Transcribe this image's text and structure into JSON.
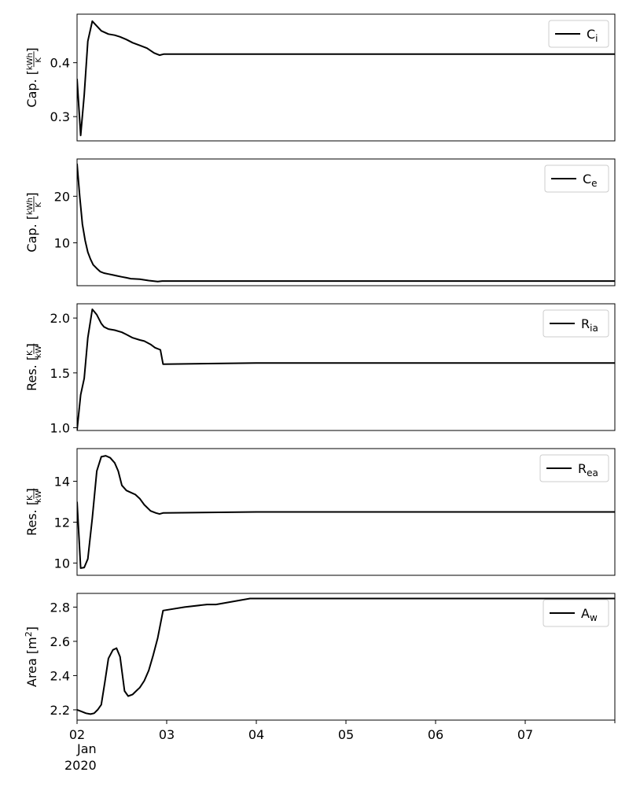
{
  "chart_data": [
    {
      "type": "line",
      "legend": {
        "label": "C",
        "sub": "i",
        "position": "top-right"
      },
      "ylabel": {
        "prefix": "Cap. [",
        "num": "kWh",
        "den": "K",
        "suffix": "]"
      },
      "xlim": [
        0,
        6
      ],
      "ylim": [
        0.255,
        0.49
      ],
      "yticks": [
        {
          "value": 0.3,
          "label": "0.3"
        },
        {
          "value": 0.4,
          "label": "0.4"
        }
      ],
      "x": [
        0,
        0.04,
        0.08,
        0.12,
        0.17,
        0.22,
        0.27,
        0.35,
        0.42,
        0.48,
        0.55,
        0.62,
        0.7,
        0.78,
        0.86,
        0.92,
        0.97,
        2.0,
        6.0
      ],
      "values": [
        0.37,
        0.265,
        0.34,
        0.44,
        0.477,
        0.468,
        0.459,
        0.453,
        0.451,
        0.448,
        0.443,
        0.437,
        0.432,
        0.427,
        0.418,
        0.414,
        0.416,
        0.416,
        0.416
      ]
    },
    {
      "type": "line",
      "legend": {
        "label": "C",
        "sub": "e",
        "position": "top-right"
      },
      "ylabel": {
        "prefix": "Cap. [",
        "num": "kWh",
        "den": "K",
        "suffix": "]"
      },
      "xlim": [
        0,
        6
      ],
      "ylim": [
        0.8,
        28
      ],
      "yticks": [
        {
          "value": 10,
          "label": "10"
        },
        {
          "value": 20,
          "label": "20"
        }
      ],
      "x": [
        0,
        0.03,
        0.06,
        0.09,
        0.12,
        0.15,
        0.18,
        0.22,
        0.26,
        0.3,
        0.35,
        0.4,
        0.45,
        0.5,
        0.55,
        0.6,
        0.7,
        0.8,
        0.85,
        0.9,
        0.95,
        2.0,
        6.0
      ],
      "values": [
        27,
        20,
        14,
        10.5,
        8,
        6.5,
        5.3,
        4.5,
        3.8,
        3.5,
        3.3,
        3.1,
        2.9,
        2.7,
        2.5,
        2.3,
        2.2,
        1.9,
        1.8,
        1.7,
        1.8,
        1.8,
        1.8
      ]
    },
    {
      "type": "line",
      "legend": {
        "label": "R",
        "sub": "ia",
        "position": "top-right"
      },
      "ylabel": {
        "prefix": "Res. [",
        "num": "K",
        "den": "kW",
        "suffix": "]"
      },
      "xlim": [
        0,
        6
      ],
      "ylim": [
        0.975,
        2.13
      ],
      "yticks": [
        {
          "value": 1.0,
          "label": "1.0"
        },
        {
          "value": 1.5,
          "label": "1.5"
        },
        {
          "value": 2.0,
          "label": "2.0"
        }
      ],
      "x": [
        0,
        0.04,
        0.08,
        0.12,
        0.17,
        0.22,
        0.27,
        0.3,
        0.35,
        0.42,
        0.5,
        0.55,
        0.62,
        0.7,
        0.75,
        0.82,
        0.87,
        0.93,
        0.96,
        2.0,
        6.0
      ],
      "values": [
        0.98,
        1.3,
        1.45,
        1.82,
        2.08,
        2.03,
        1.95,
        1.92,
        1.9,
        1.89,
        1.87,
        1.85,
        1.82,
        1.8,
        1.79,
        1.76,
        1.73,
        1.71,
        1.58,
        1.59,
        1.59
      ]
    },
    {
      "type": "line",
      "legend": {
        "label": "R",
        "sub": "ea",
        "position": "top-right"
      },
      "ylabel": {
        "prefix": "Res. [",
        "num": "K",
        "den": "kW",
        "suffix": "]"
      },
      "xlim": [
        0,
        6
      ],
      "ylim": [
        9.4,
        15.6
      ],
      "yticks": [
        {
          "value": 10,
          "label": "10"
        },
        {
          "value": 12,
          "label": "12"
        },
        {
          "value": 14,
          "label": "14"
        }
      ],
      "x": [
        0,
        0.04,
        0.08,
        0.12,
        0.17,
        0.22,
        0.27,
        0.32,
        0.37,
        0.42,
        0.46,
        0.5,
        0.55,
        0.6,
        0.65,
        0.7,
        0.75,
        0.82,
        0.88,
        0.92,
        0.96,
        2.0,
        6.0
      ],
      "values": [
        13.0,
        9.75,
        9.78,
        10.2,
        12.2,
        14.5,
        15.2,
        15.25,
        15.15,
        14.9,
        14.5,
        13.8,
        13.55,
        13.45,
        13.35,
        13.15,
        12.85,
        12.55,
        12.45,
        12.4,
        12.45,
        12.5,
        12.5
      ]
    },
    {
      "type": "line",
      "legend": {
        "label": "A",
        "sub": "w",
        "position": "top-right"
      },
      "ylabel": {
        "prefix": "Area [m",
        "sup": "2",
        "suffix": "]"
      },
      "xlim": [
        0,
        6
      ],
      "ylim": [
        2.14,
        2.88
      ],
      "yticks": [
        {
          "value": 2.2,
          "label": "2.2"
        },
        {
          "value": 2.4,
          "label": "2.4"
        },
        {
          "value": 2.6,
          "label": "2.6"
        },
        {
          "value": 2.8,
          "label": "2.8"
        }
      ],
      "x": [
        0,
        0.05,
        0.1,
        0.15,
        0.19,
        0.23,
        0.27,
        0.31,
        0.35,
        0.4,
        0.44,
        0.48,
        0.53,
        0.57,
        0.62,
        0.66,
        0.7,
        0.75,
        0.8,
        0.85,
        0.9,
        0.96,
        1.2,
        1.45,
        1.55,
        1.93,
        2.0,
        6.0
      ],
      "values": [
        2.2,
        2.19,
        2.18,
        2.175,
        2.18,
        2.2,
        2.23,
        2.36,
        2.5,
        2.55,
        2.56,
        2.51,
        2.31,
        2.28,
        2.29,
        2.31,
        2.33,
        2.37,
        2.43,
        2.52,
        2.62,
        2.78,
        2.8,
        2.815,
        2.815,
        2.85,
        2.85,
        2.85
      ]
    }
  ],
  "x_axis": {
    "ticks": [
      {
        "value": 0,
        "label": "02"
      },
      {
        "value": 1,
        "label": "03"
      },
      {
        "value": 2,
        "label": "04"
      },
      {
        "value": 3,
        "label": "05"
      },
      {
        "value": 4,
        "label": "06"
      },
      {
        "value": 5,
        "label": "07"
      }
    ],
    "month_label": "Jan",
    "year_label": "2020"
  },
  "colors": {
    "line": "#000000",
    "axes": "#000000",
    "legend_border": "#cccccc"
  }
}
